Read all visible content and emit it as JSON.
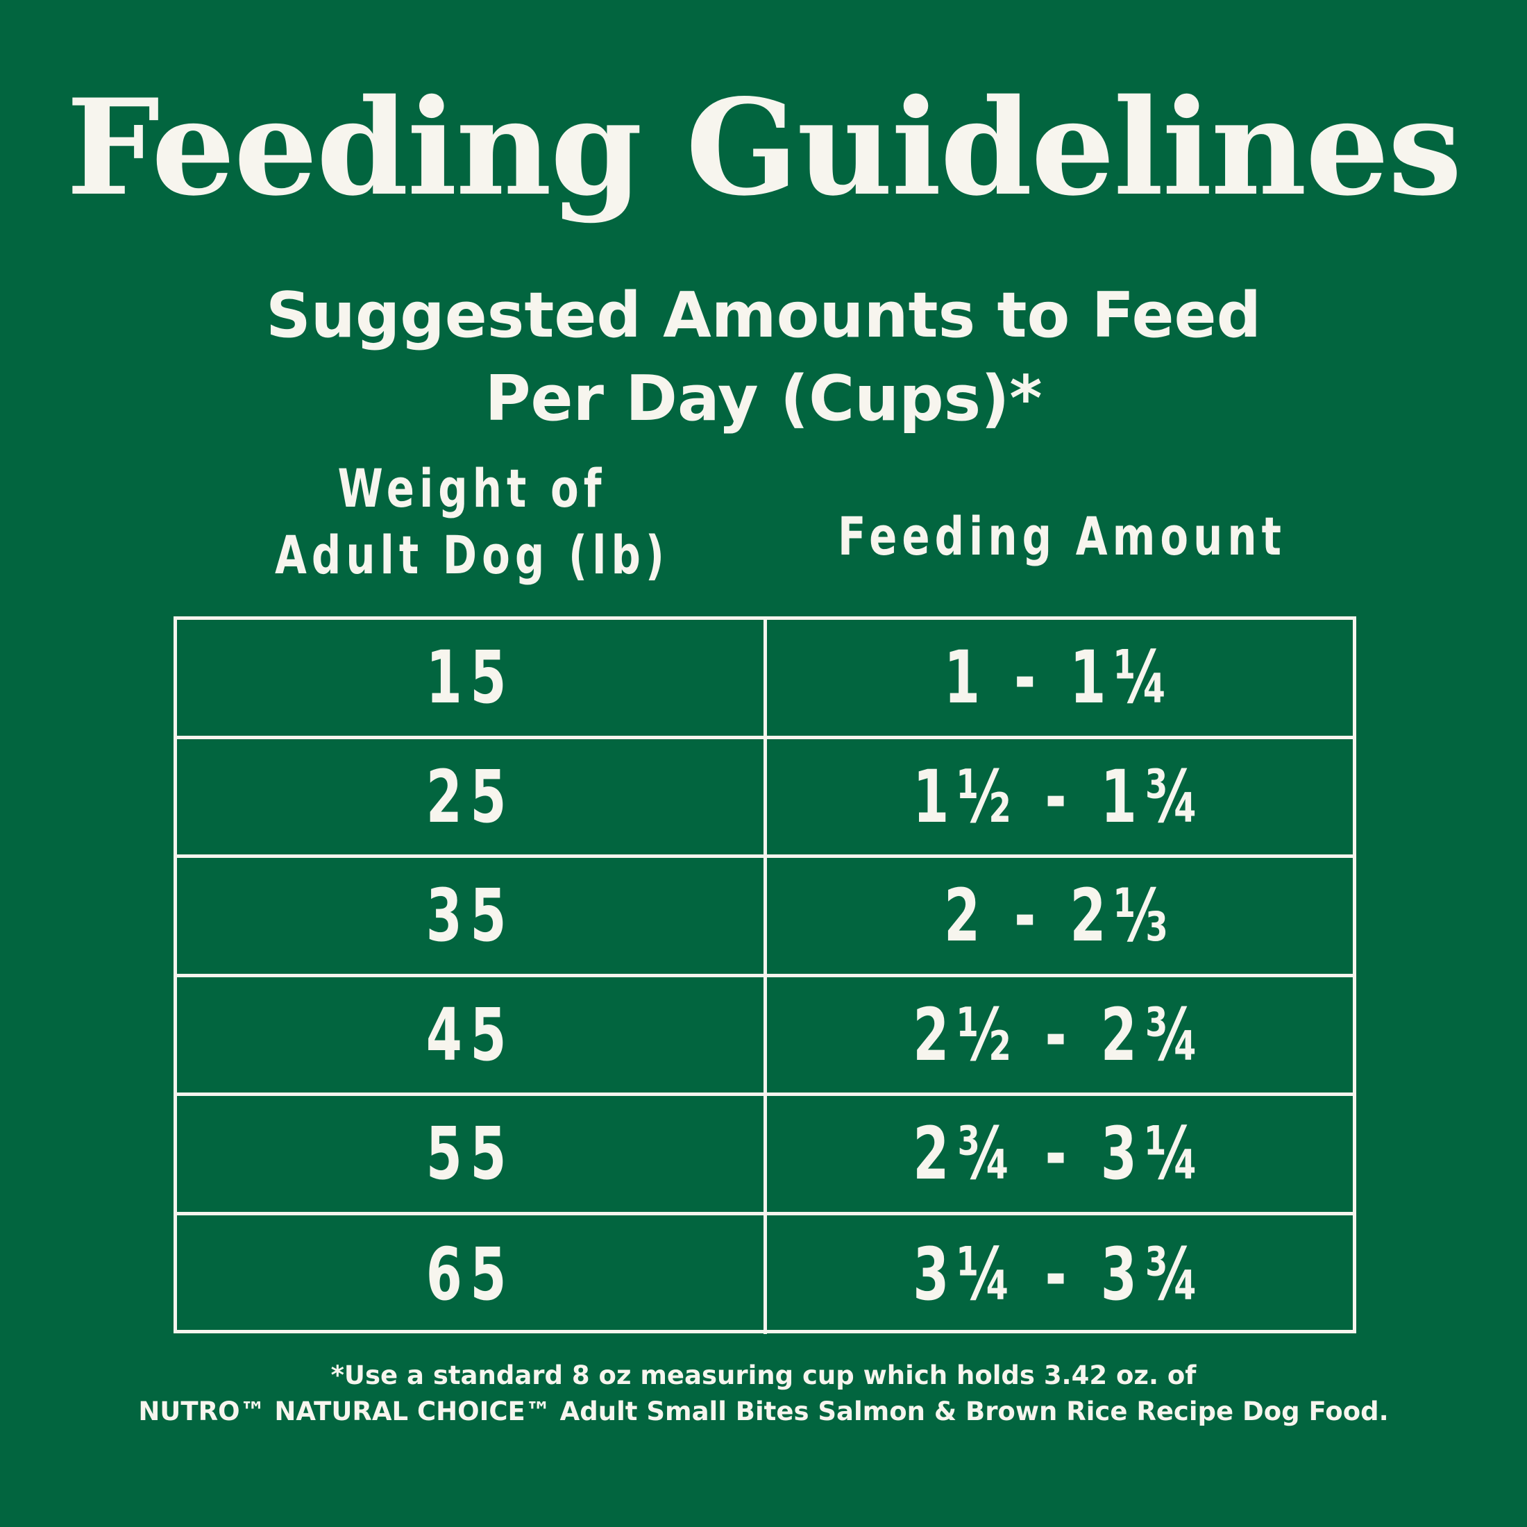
{
  "title": "Feeding Guidelines",
  "subtitle": {
    "line1": "Suggested Amounts to Feed",
    "line2": "Per Day (Cups)*"
  },
  "table": {
    "headers": {
      "weight_line1": "Weight of",
      "weight_line2": "Adult Dog (lb)",
      "amount": "Feeding Amount"
    },
    "rows": [
      {
        "weight": "15",
        "amount": "1 - 1¼"
      },
      {
        "weight": "25",
        "amount": "1½ - 1¾"
      },
      {
        "weight": "35",
        "amount": "2 - 2⅓"
      },
      {
        "weight": "45",
        "amount": "2½ - 2¾"
      },
      {
        "weight": "55",
        "amount": "2¾ - 3¼"
      },
      {
        "weight": "65",
        "amount": "3¼ - 3¾"
      }
    ]
  },
  "footnote": {
    "line1": "*Use a standard 8 oz measuring cup which holds 3.42 oz. of",
    "line2": "NUTRO™ NATURAL CHOICE™ Adult Small Bites Salmon & Brown Rice Recipe Dog Food."
  },
  "colors": {
    "background": "#02653f",
    "text": "#f7f5ee"
  }
}
